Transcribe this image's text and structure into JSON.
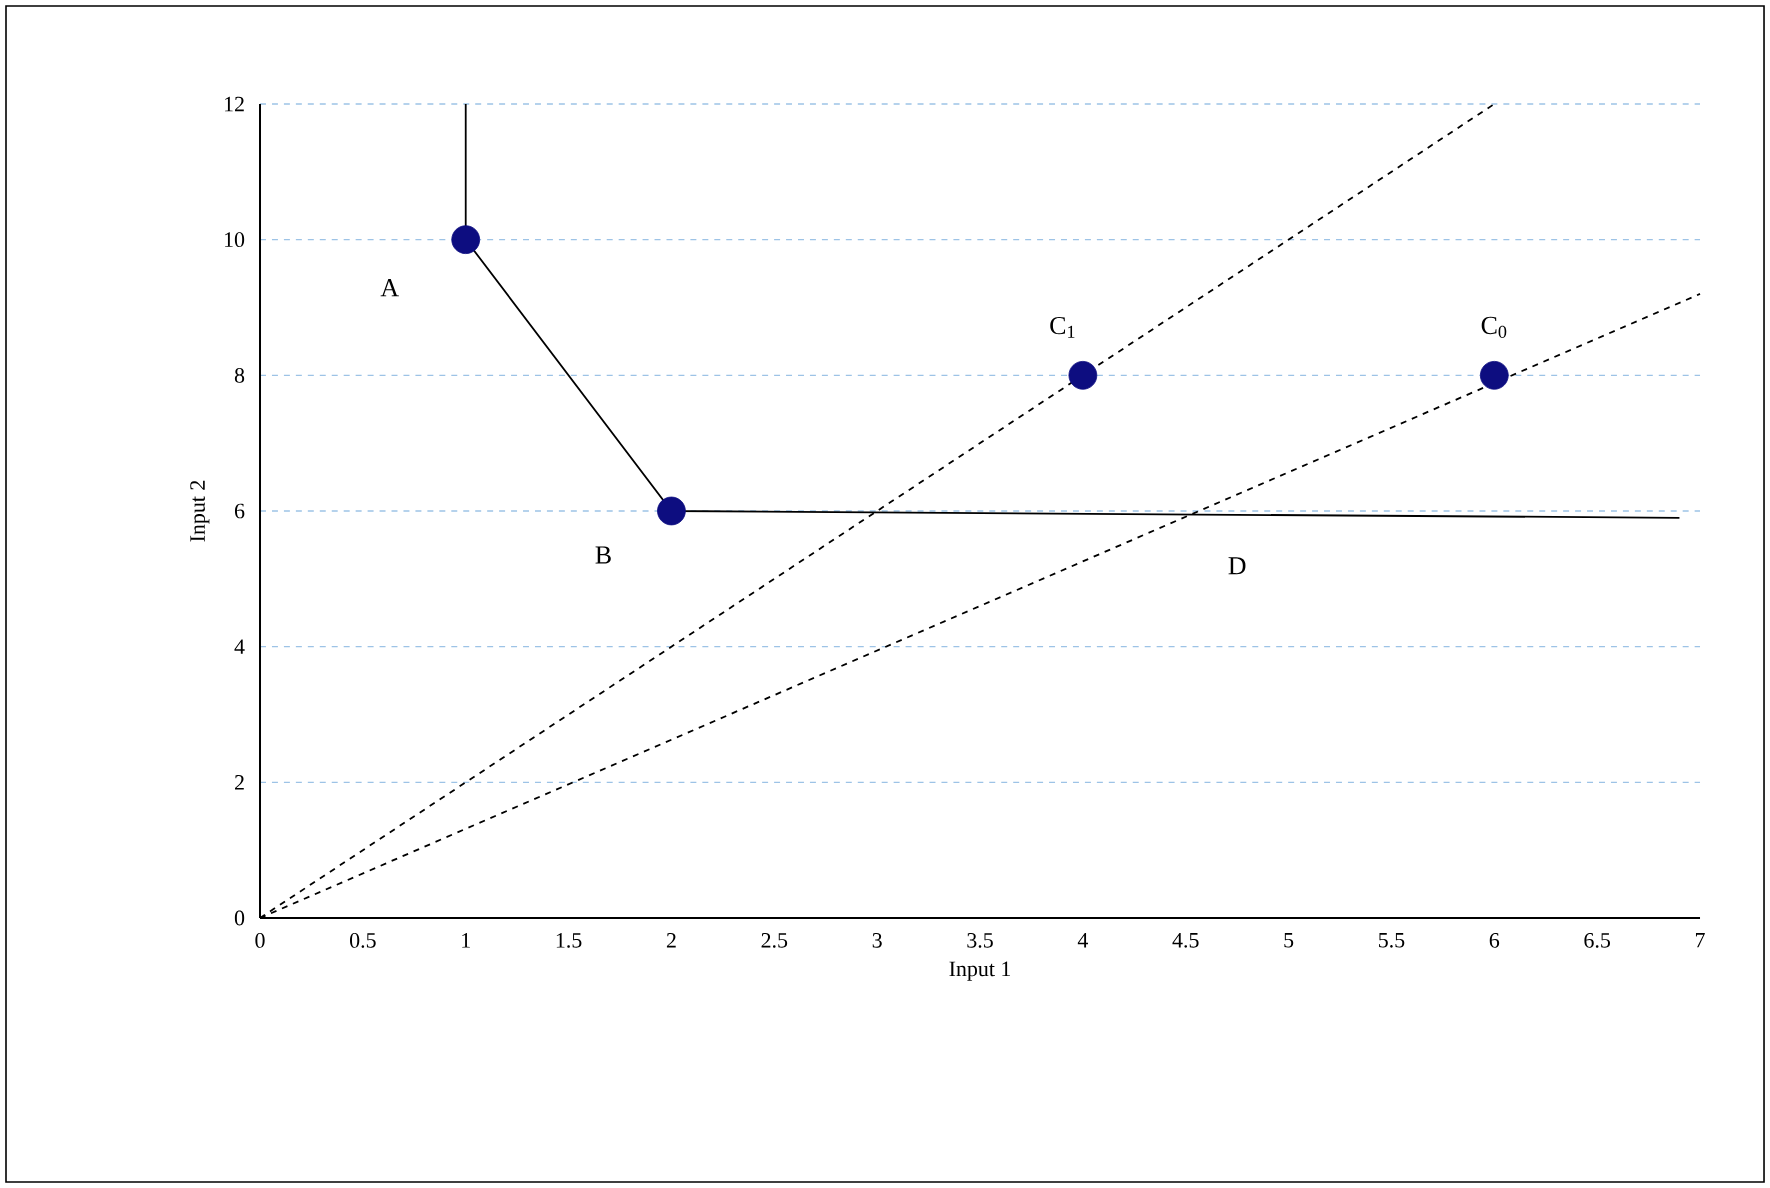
{
  "chart_data": {
    "type": "scatter",
    "xlabel": "Input 1",
    "ylabel": "Input 2",
    "xlim": [
      0,
      7
    ],
    "ylim": [
      0,
      12
    ],
    "xticks": [
      0,
      0.5,
      1,
      1.5,
      2,
      2.5,
      3,
      3.5,
      4,
      4.5,
      5,
      5.5,
      6,
      6.5,
      7
    ],
    "yticks": [
      0,
      2,
      4,
      6,
      8,
      10,
      12
    ],
    "grid": "y",
    "series": [
      {
        "type": "line",
        "color": "#000000",
        "line_style": "solid",
        "marker": "none",
        "x": [
          1,
          1,
          2,
          6.9
        ],
        "values": [
          12,
          10,
          6,
          5.9
        ]
      },
      {
        "type": "line",
        "color": "#000000",
        "line_style": "dashed",
        "marker": "none",
        "x": [
          0,
          6
        ],
        "values": [
          0,
          12
        ]
      },
      {
        "type": "line",
        "color": "#000000",
        "line_style": "dashed",
        "marker": "none",
        "x": [
          0,
          7
        ],
        "values": [
          0,
          9.2
        ]
      },
      {
        "color": "#0d0d80",
        "marker": "circle",
        "x": [
          1,
          2,
          4,
          6
        ],
        "values": [
          10,
          6,
          8,
          8
        ]
      }
    ],
    "annotations": [
      {
        "text": "A",
        "x": 1,
        "y": 10
      },
      {
        "text": "B",
        "x": 2,
        "y": 6
      },
      {
        "text": "C$_{1}$",
        "x": 4,
        "y": 8
      },
      {
        "text": "C$_{0}$",
        "x": 6,
        "y": 8
      },
      {
        "text": "D",
        "x": 4.75,
        "y": 5.9
      }
    ]
  }
}
